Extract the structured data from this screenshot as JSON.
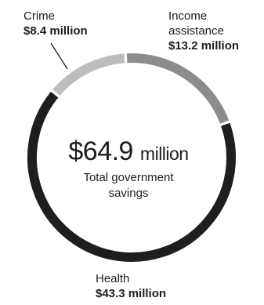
{
  "chart_data": {
    "type": "pie",
    "style": "donut",
    "center": {
      "amount": "$64.9",
      "unit": "million",
      "label_line1": "Total government",
      "label_line2": "savings"
    },
    "slices": [
      {
        "label_lines": [
          "Crime"
        ],
        "value_label": "$8.4 million",
        "value": 8.4,
        "color": "#bdbdbd"
      },
      {
        "label_lines": [
          "Income",
          "assistance"
        ],
        "value_label": "$13.2 million",
        "value": 13.2,
        "color": "#8c8c8c"
      },
      {
        "label_lines": [
          "Health"
        ],
        "value_label": "$43.3 million",
        "value": 43.3,
        "color": "#1e1e1e"
      }
    ]
  }
}
